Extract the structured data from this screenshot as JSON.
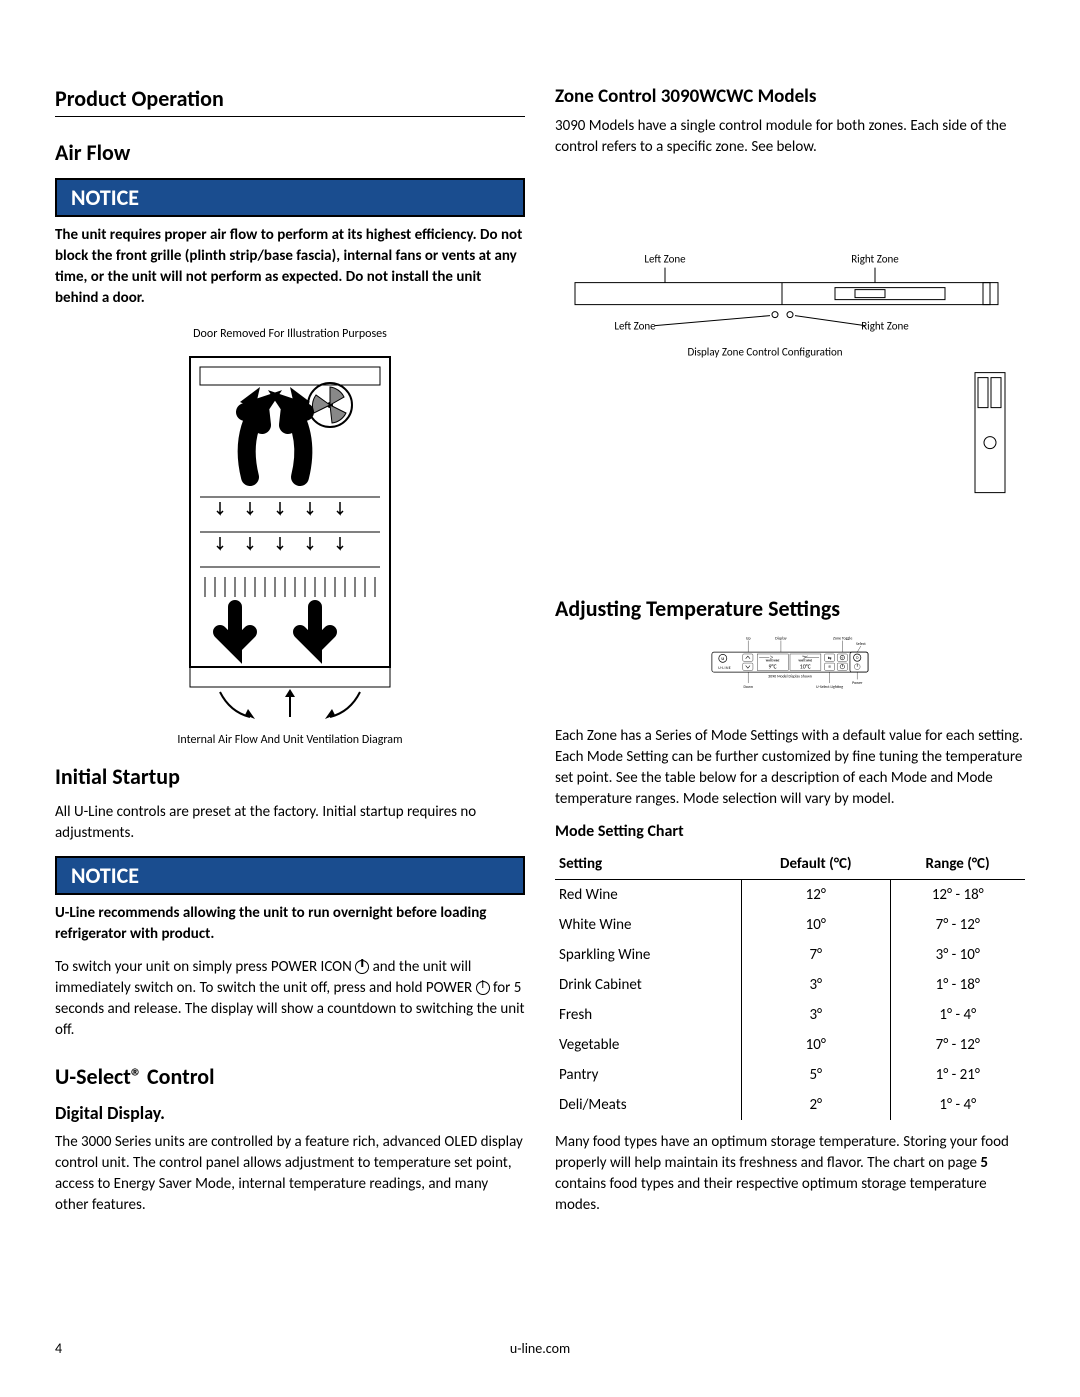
{
  "left": {
    "section_title": "Product Operation",
    "airflow_title": "Air Flow",
    "notice1": "NOTICE",
    "airflow_notice_text": "The unit requires proper air flow to perform at its highest efficiency. Do not block the front grille (plinth strip/base fascia), internal fans or vents at any time, or the unit will not perform as expected. Do not install the unit behind a door.",
    "caption_top": "Door Removed For Illustration Purposes",
    "caption_bottom": "Internal Air Flow And Unit Ventilation Diagram",
    "initial_title": "Initial Startup",
    "initial_text": "All U-Line controls are preset at the factory. Initial startup requires no adjustments.",
    "notice2": "NOTICE",
    "initial_notice_text": "U-Line recommends allowing the unit to run overnight before loading refrigerator with product.",
    "power_text_1": "To switch your unit on simply press POWER ICON ",
    "power_text_2": " and the unit will immediately switch on. To switch the unit off, press and hold POWER ",
    "power_text_3": " for 5 seconds and release. The display will show a countdown to switching the unit off.",
    "uselect_title": "U-Select® Control",
    "digital_display_label": "Digital Display.",
    "digital_display_text": "The 3000 Series units are controlled by a feature rich, advanced OLED display control unit. The control panel allows adjustment to temperature set point, access to Energy Saver Mode, internal temperature readings, and many other features."
  },
  "right": {
    "zone_title": "Zone Control 3090WCWC Models",
    "zone_text": "3090 Models have a single control module for both zones. Each side of the control refers to a specific zone. See below.",
    "zone_labels": {
      "left_top": "Left Zone",
      "right_top": "Right Zone",
      "left_mid": "Left Zone",
      "right_mid": "Right Zone",
      "caption": "Display Zone Control Configuration"
    },
    "adjust_title": "Adjusting Temperature Settings",
    "display_labels": {
      "up": "Up",
      "display": "Display",
      "zone_toggle": "Zone Toggle",
      "select": "Select",
      "brand": "U·LINE",
      "white_wine_l": "WHITE WINE",
      "white_wine_r": "WHITE WINE",
      "temp_l": "9°C",
      "temp_r": "10°C",
      "caption": "3090 Model Display Shown",
      "down": "Down",
      "lighting": "U-Select Lighting",
      "power": "Power"
    },
    "zone_desc": "Each Zone has a Series of Mode Settings with a default value for each setting. Each Mode Setting can be further customized by fine tuning the temperature set point. See the table below for a description of each Mode and Mode temperature ranges. Mode selection will vary by model.",
    "chart_title": "Mode Setting Chart",
    "table": {
      "headers": [
        "Setting",
        "Default (°C)",
        "Range (°C)"
      ],
      "rows": [
        [
          "Red Wine",
          "12°",
          "12° - 18°"
        ],
        [
          "White Wine",
          "10°",
          "7° - 12°"
        ],
        [
          "Sparkling Wine",
          "7°",
          "3° - 10°"
        ],
        [
          "Drink Cabinet",
          "3°",
          "1° - 18°"
        ],
        [
          "Fresh",
          "3°",
          "1° - 4°"
        ],
        [
          "Vegetable",
          "10°",
          "7° - 12°"
        ],
        [
          "Pantry",
          "5°",
          "1° - 21°"
        ],
        [
          "Deli/Meats",
          "2°",
          "1° - 4°"
        ]
      ]
    },
    "storage_text_1": "Many food types have an optimum storage temperature. Storing your food properly will help maintain its freshness and flavor. The chart on page ",
    "storage_page": "5",
    "storage_text_2": " contains food types and their respective optimum storage temperature modes."
  },
  "footer": {
    "page": "4",
    "site": "u-line.com"
  }
}
